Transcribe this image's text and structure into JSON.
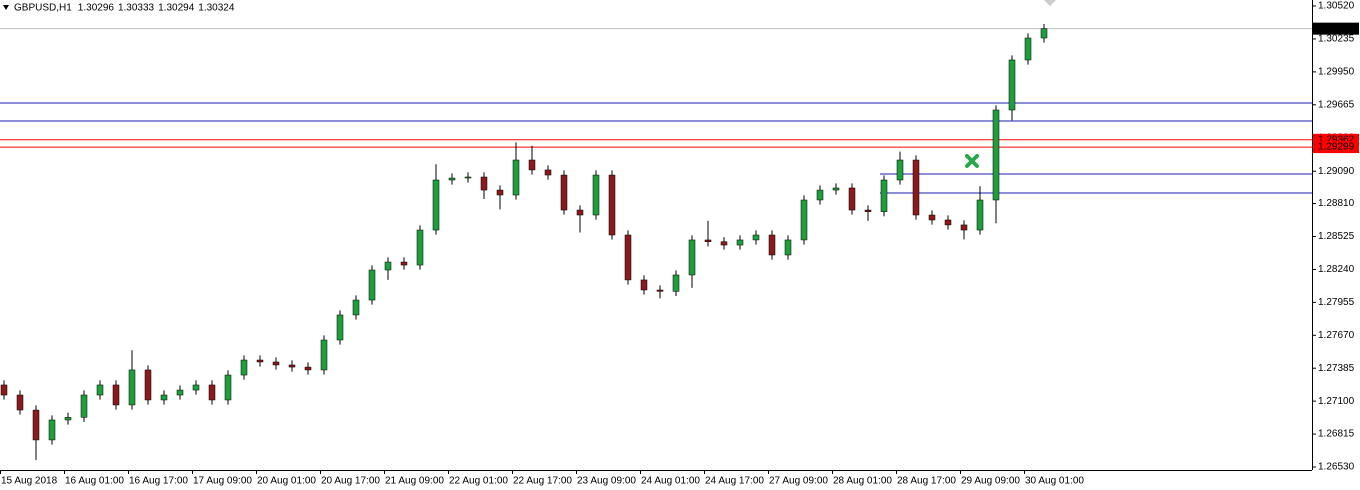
{
  "chart_data": {
    "type": "candlestick",
    "title": "GBPUSD,H1",
    "header_values": [
      1.30296,
      1.30333,
      1.30294,
      1.30324
    ],
    "categories": [
      "15 Aug 2018",
      null,
      null,
      null,
      "16 Aug 01:00",
      null,
      null,
      null,
      "16 Aug 17:00",
      null,
      null,
      null,
      "17 Aug 09:00",
      null,
      null,
      null,
      "20 Aug 01:00",
      null,
      null,
      null,
      "20 Aug 17:00",
      null,
      null,
      null,
      "21 Aug 09:00",
      null,
      null,
      null,
      "22 Aug 01:00",
      null,
      null,
      null,
      "22 Aug 17:00",
      null,
      null,
      null,
      "23 Aug 09:00",
      null,
      null,
      null,
      "24 Aug 01:00",
      null,
      null,
      null,
      "24 Aug 17:00",
      null,
      null,
      null,
      "27 Aug 09:00",
      null,
      null,
      null,
      "28 Aug 01:00",
      null,
      null,
      null,
      "28 Aug 17:00",
      null,
      null,
      null,
      "29 Aug 09:00",
      null,
      null,
      null,
      "30 Aug 01:00",
      null
    ],
    "open": [
      1.2724,
      1.27153,
      1.27023,
      1.26764,
      1.26937,
      1.2696,
      1.27153,
      1.2724,
      1.27067,
      1.2737,
      1.2711,
      1.27153,
      1.27196,
      1.2724,
      1.2711,
      1.27326,
      1.27456,
      1.27439,
      1.27413,
      1.27395,
      1.2737,
      1.27629,
      1.27846,
      1.27975,
      1.28235,
      1.28304,
      1.28278,
      1.28581,
      1.29014,
      1.29031,
      1.2904,
      1.28927,
      1.28884,
      1.29187,
      1.29101,
      1.29057,
      1.28754,
      1.28711,
      1.29057,
      1.28538,
      1.28149,
      1.28062,
      1.2805,
      1.28192,
      1.28495,
      1.2848,
      1.28451,
      1.28495,
      1.28538,
      1.28365,
      1.28495,
      1.28841,
      1.28927,
      1.28945,
      1.28754,
      1.2874,
      1.29014,
      1.29187,
      1.28711,
      1.28668,
      1.28625,
      1.28581,
      1.28841,
      1.2962,
      1.30053,
      1.30243
    ],
    "high": [
      1.2728,
      1.27193,
      1.27063,
      1.26977,
      1.27,
      1.27193,
      1.2728,
      1.2728,
      1.2754,
      1.2741,
      1.27193,
      1.27236,
      1.2728,
      1.2728,
      1.27366,
      1.27496,
      1.27496,
      1.27479,
      1.27453,
      1.27435,
      1.27669,
      1.27886,
      1.28015,
      1.28275,
      1.28344,
      1.28344,
      1.28621,
      1.2915,
      1.29071,
      1.2908,
      1.2908,
      1.28967,
      1.2934,
      1.2931,
      1.29141,
      1.29097,
      1.28794,
      1.29097,
      1.29097,
      1.28578,
      1.28189,
      1.28102,
      1.28232,
      1.28535,
      1.2866,
      1.2852,
      1.28535,
      1.28578,
      1.28578,
      1.28535,
      1.28881,
      1.28967,
      1.28985,
      1.28985,
      1.28794,
      1.29054,
      1.2926,
      1.29227,
      1.28751,
      1.28708,
      1.28665,
      1.2896,
      1.2966,
      1.30093,
      1.30283,
      1.30364
    ],
    "low": [
      1.27113,
      1.26983,
      1.2659,
      1.26724,
      1.26897,
      1.2692,
      1.27113,
      1.27027,
      1.27027,
      1.2707,
      1.2707,
      1.27113,
      1.27156,
      1.2707,
      1.2707,
      1.27286,
      1.27399,
      1.27373,
      1.27355,
      1.2733,
      1.2733,
      1.27589,
      1.27806,
      1.27935,
      1.2815,
      1.28238,
      1.28238,
      1.28541,
      1.28974,
      1.28991,
      1.2885,
      1.2876,
      1.28844,
      1.29061,
      1.29017,
      1.28714,
      1.2856,
      1.28671,
      1.28498,
      1.28109,
      1.28022,
      1.2799,
      1.2801,
      1.2808,
      1.2844,
      1.28411,
      1.28411,
      1.28455,
      1.28325,
      1.28325,
      1.28455,
      1.28801,
      1.28887,
      1.28714,
      1.2866,
      1.287,
      1.28974,
      1.28671,
      1.28628,
      1.28585,
      1.285,
      1.28541,
      1.2864,
      1.2953,
      1.30013,
      1.30203
    ],
    "close": [
      1.27153,
      1.27023,
      1.26764,
      1.26937,
      1.2696,
      1.27153,
      1.2724,
      1.27067,
      1.2737,
      1.2711,
      1.27153,
      1.27196,
      1.2724,
      1.2711,
      1.27326,
      1.27456,
      1.27439,
      1.27413,
      1.27395,
      1.2737,
      1.27629,
      1.27846,
      1.27975,
      1.28235,
      1.28304,
      1.28278,
      1.28581,
      1.29014,
      1.29031,
      1.2904,
      1.28927,
      1.28884,
      1.29187,
      1.29101,
      1.29057,
      1.28754,
      1.28711,
      1.29057,
      1.28538,
      1.28149,
      1.28062,
      1.2805,
      1.28192,
      1.28495,
      1.2848,
      1.28451,
      1.28495,
      1.28538,
      1.28365,
      1.28495,
      1.28841,
      1.28927,
      1.28945,
      1.28754,
      1.2874,
      1.29014,
      1.29187,
      1.28711,
      1.28668,
      1.28625,
      1.28581,
      1.28841,
      1.2962,
      1.30053,
      1.30243,
      1.30324
    ],
    "up_color": "#1e9e3c",
    "down_color": "#8b1a1a",
    "levels": [
      {
        "value": 1.2968,
        "color": "#1c1cb0"
      },
      {
        "value": 1.29525,
        "color": "#1c1cb0"
      },
      {
        "value": 1.29362,
        "color": "#ff0000",
        "label": "1.29362"
      },
      {
        "value": 1.29299,
        "color": "#ff0000",
        "label": "1.29299"
      },
      {
        "value": 1.29066,
        "color": "#1c1cb0",
        "start": 55
      },
      {
        "value": 1.28902,
        "color": "#1c1cb0",
        "start": 55
      }
    ],
    "last_price": 1.30324,
    "ylim": [
      1.26504,
      1.30572
    ],
    "yticks": [
      {
        "value": 1.3052,
        "label": "1.30520"
      },
      {
        "value": 1.30235,
        "label": "1.30235"
      },
      {
        "value": 1.2995,
        "label": "1.29950"
      },
      {
        "value": 1.29665,
        "label": "1.29665"
      },
      {
        "value": 1.2938,
        "label": "1.29380"
      },
      {
        "value": 1.2909,
        "label": "1.29090"
      },
      {
        "value": 1.2881,
        "label": "1.28810"
      },
      {
        "value": 1.28525,
        "label": "1.28525"
      },
      {
        "value": 1.2824,
        "label": "1.28240"
      },
      {
        "value": 1.27955,
        "label": "1.27955"
      },
      {
        "value": 1.2767,
        "label": "1.27670"
      },
      {
        "value": 1.27385,
        "label": "1.27385"
      },
      {
        "value": 1.271,
        "label": "1.27100"
      },
      {
        "value": 1.26815,
        "label": "1.26815"
      },
      {
        "value": 1.2653,
        "label": "1.26530"
      }
    ]
  }
}
